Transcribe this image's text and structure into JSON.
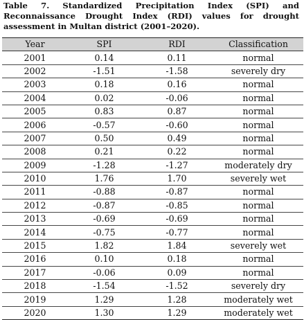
{
  "caption": {
    "line1": "Table 7. Standardized Precipitation Index (SPI) and",
    "line2": "Reconnaissance Drought Index (RDI) values for drought",
    "line3": "assessment in Multan district (2001–2020)."
  },
  "table": {
    "headers": [
      "Year",
      "SPI",
      "RDI",
      "Classification"
    ],
    "rows": [
      [
        "2001",
        "0.14",
        "0.11",
        "normal"
      ],
      [
        "2002",
        "-1.51",
        "-1.58",
        "severely dry"
      ],
      [
        "2003",
        "0.18",
        "0.16",
        "normal"
      ],
      [
        "2004",
        "0.02",
        "-0.06",
        "normal"
      ],
      [
        "2005",
        "0.83",
        "0.87",
        "normal"
      ],
      [
        "2006",
        "-0.57",
        "-0.60",
        "normal"
      ],
      [
        "2007",
        "0.50",
        "0.49",
        "normal"
      ],
      [
        "2008",
        "0.21",
        "0.22",
        "normal"
      ],
      [
        "2009",
        "-1.28",
        "-1.27",
        "moderately dry"
      ],
      [
        "2010",
        "1.76",
        "1.70",
        "severely wet"
      ],
      [
        "2011",
        "-0.88",
        "-0.87",
        "normal"
      ],
      [
        "2012",
        "-0.87",
        "-0.85",
        "normal"
      ],
      [
        "2013",
        "-0.69",
        "-0.69",
        "normal"
      ],
      [
        "2014",
        "-0.75",
        "-0.77",
        "normal"
      ],
      [
        "2015",
        "1.82",
        "1.84",
        "severely wet"
      ],
      [
        "2016",
        "0.10",
        "0.18",
        "normal"
      ],
      [
        "2017",
        "-0.06",
        "0.09",
        "normal"
      ],
      [
        "2018",
        "-1.54",
        "-1.52",
        "severely dry"
      ],
      [
        "2019",
        "1.29",
        "1.28",
        "moderately wet"
      ],
      [
        "2020",
        "1.30",
        "1.29",
        "moderately wet"
      ]
    ]
  },
  "colors": {
    "header_background": "#d3d3d3",
    "text": "#111111",
    "rule": "#222222"
  }
}
